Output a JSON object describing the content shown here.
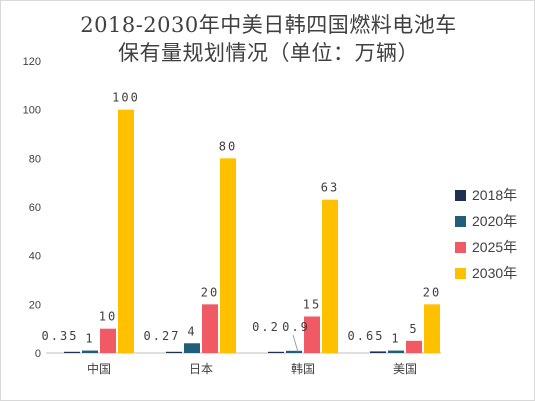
{
  "chart_data": {
    "type": "bar",
    "title_line1": "2018-2030年中美日韩四国燃料电池车",
    "title_line2": "保有量规划情况（单位：万辆）",
    "categories": [
      "中国",
      "日本",
      "韩国",
      "美国"
    ],
    "series": [
      {
        "name": "2018年",
        "color": "#1f2f4f",
        "values": [
          0.35,
          0.27,
          0.2,
          0.65
        ],
        "labels": [
          "0.35",
          "0.27",
          "0.2",
          "0.65"
        ]
      },
      {
        "name": "2020年",
        "color": "#1f5f7a",
        "values": [
          1,
          4,
          0.9,
          1
        ],
        "labels": [
          "1",
          "4",
          "0.9",
          "1"
        ]
      },
      {
        "name": "2025年",
        "color": "#f05a64",
        "values": [
          10,
          20,
          15,
          5
        ],
        "labels": [
          "10",
          "20",
          "15",
          "5"
        ]
      },
      {
        "name": "2030年",
        "color": "#ffc000",
        "values": [
          100,
          80,
          63,
          20
        ],
        "labels": [
          "100",
          "80",
          "63",
          "20"
        ]
      }
    ],
    "ylim": [
      0,
      120
    ],
    "yticks": [
      "0",
      "20",
      "40",
      "60",
      "80",
      "100",
      "120"
    ],
    "grid": false,
    "legend_position": "right"
  }
}
